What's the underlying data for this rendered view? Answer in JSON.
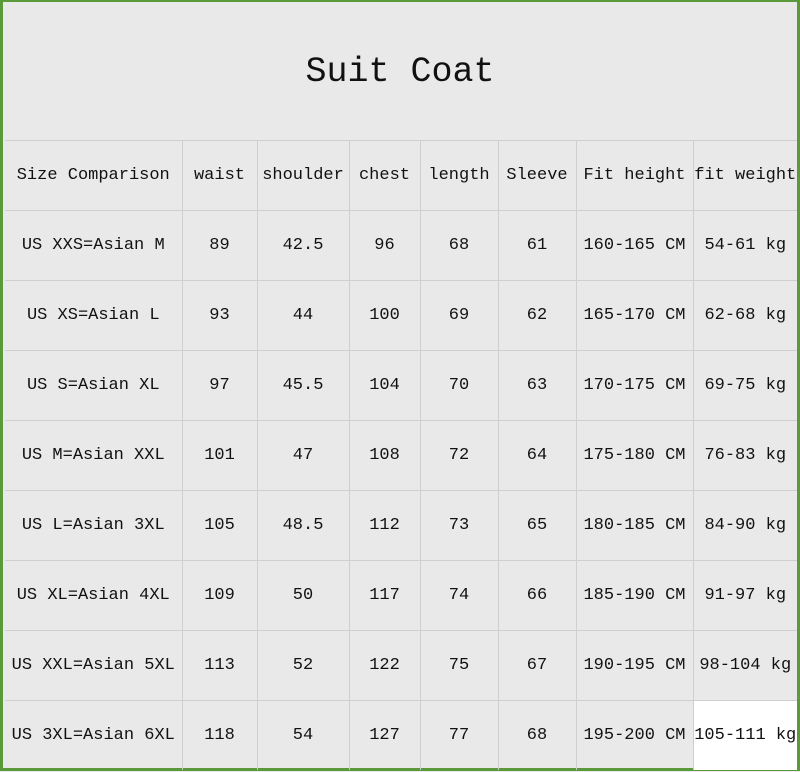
{
  "title": "Suit Coat",
  "headers": [
    "Size Comparison",
    "waist",
    "shoulder",
    "chest",
    "length",
    "Sleeve",
    "Fit height",
    "fit weight"
  ],
  "rows": [
    [
      "US XXS=Asian M",
      "89",
      "42.5",
      "96",
      "68",
      "61",
      "160-165 CM",
      "54-61 kg"
    ],
    [
      "US XS=Asian L",
      "93",
      "44",
      "100",
      "69",
      "62",
      "165-170 CM",
      "62-68 kg"
    ],
    [
      "US S=Asian XL",
      "97",
      "45.5",
      "104",
      "70",
      "63",
      "170-175 CM",
      "69-75 kg"
    ],
    [
      "US M=Asian XXL",
      "101",
      "47",
      "108",
      "72",
      "64",
      "175-180 CM",
      "76-83 kg"
    ],
    [
      "US L=Asian 3XL",
      "105",
      "48.5",
      "112",
      "73",
      "65",
      "180-185 CM",
      "84-90 kg"
    ],
    [
      "US XL=Asian 4XL",
      "109",
      "50",
      "117",
      "74",
      "66",
      "185-190 CM",
      "91-97 kg"
    ],
    [
      "US XXL=Asian 5XL",
      "113",
      "52",
      "122",
      "75",
      "67",
      "190-195 CM",
      "98-104 kg"
    ],
    [
      "US 3XL=Asian 6XL",
      "118",
      "54",
      "127",
      "77",
      "68",
      "195-200 CM",
      "105-111 kg"
    ]
  ],
  "colors": {
    "border": "#5a9a3a",
    "background": "#e9e9e9",
    "grid": "#cfcfcf"
  }
}
